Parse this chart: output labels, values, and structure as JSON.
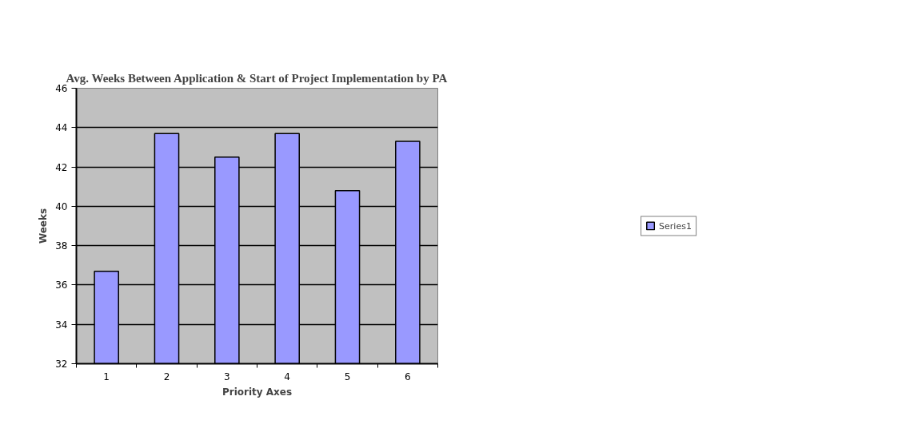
{
  "chart_data": {
    "type": "bar",
    "title": "Avg. Weeks Between Application & Start of Project Implementation by PA",
    "xlabel": "Priority Axes",
    "ylabel": "Weeks",
    "categories": [
      "1",
      "2",
      "3",
      "4",
      "5",
      "6"
    ],
    "series": [
      {
        "name": "Series1",
        "color": "#9999ff",
        "values": [
          36.7,
          43.7,
          42.5,
          43.7,
          40.8,
          43.3
        ]
      }
    ],
    "ylim": [
      32,
      46
    ],
    "yticks": [
      32,
      34,
      36,
      38,
      40,
      42,
      44,
      46
    ],
    "grid": "y",
    "legend": "right"
  }
}
